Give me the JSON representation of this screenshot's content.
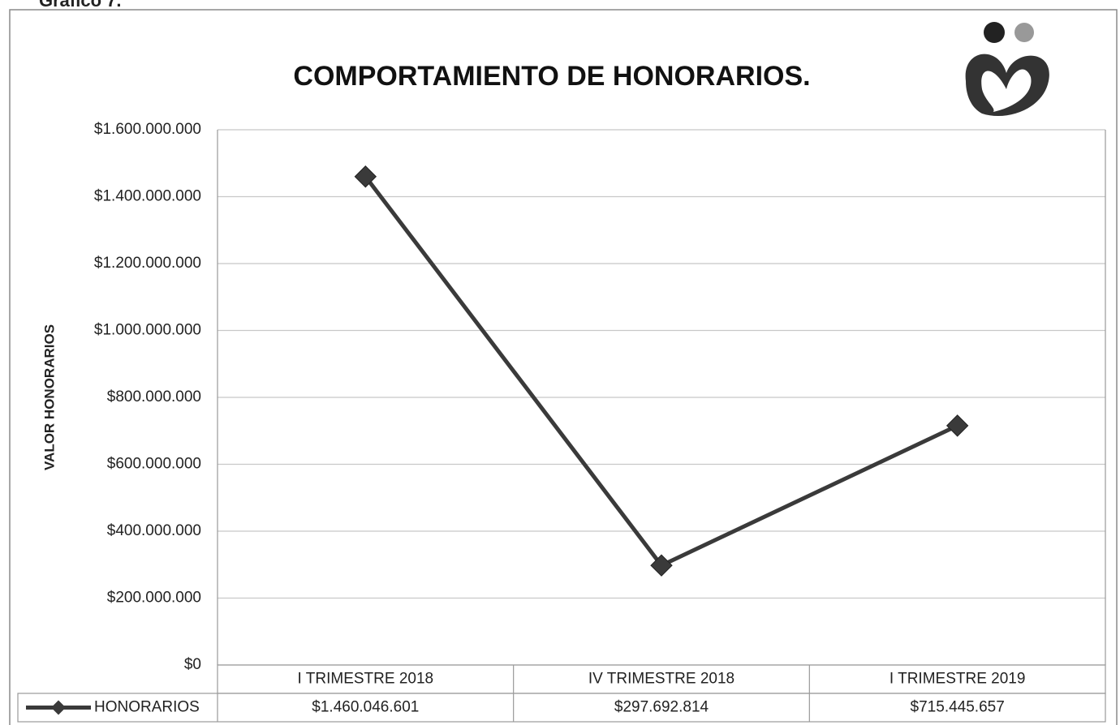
{
  "caption": "Gráfico 7.",
  "chart_data": {
    "type": "line",
    "title": "COMPORTAMIENTO DE HONORARIOS.",
    "y_label": "VALOR HONORARIOS",
    "categories": [
      "I TRIMESTRE 2018",
      "IV TRIMESTRE 2018",
      "I TRIMESTRE 2019"
    ],
    "series": [
      {
        "name": "HONORARIOS",
        "color": "#3a3a3a",
        "values": [
          1460046601,
          297692814,
          715445657
        ],
        "value_labels": [
          "$1.460.046.601",
          "$297.692.814",
          "$715.445.657"
        ]
      }
    ],
    "ylim": [
      0,
      1600000000
    ],
    "yticks": [
      {
        "value": 0,
        "label": "$0"
      },
      {
        "value": 200000000,
        "label": "$200.000.000"
      },
      {
        "value": 400000000,
        "label": "$400.000.000"
      },
      {
        "value": 600000000,
        "label": "$600.000.000"
      },
      {
        "value": 800000000,
        "label": "$800.000.000"
      },
      {
        "value": 1000000000,
        "label": "$1.000.000.000"
      },
      {
        "value": 1200000000,
        "label": "$1.200.000.000"
      },
      {
        "value": 1400000000,
        "label": "$1.400.000.000"
      },
      {
        "value": 1600000000,
        "label": "$1.600.000.000"
      }
    ],
    "grid": true
  }
}
